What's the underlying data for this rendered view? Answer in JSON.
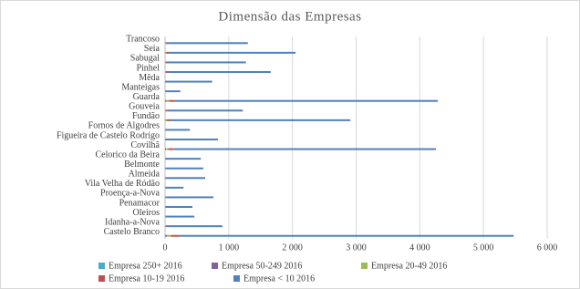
{
  "chart_data": {
    "type": "hbar_stacked",
    "title": "Dimensão das Empresas",
    "categories": [
      "Castelo Branco",
      "Idanha-a-Nova",
      "Oleiros",
      "Penamacor",
      "Proença-a-Nova",
      "Vila Velha de Ródão",
      "Almeida",
      "Belmonte",
      "Celorico da Beira",
      "Covilhã",
      "Figueira de Castelo Rodrigo",
      "Fornos de Algodres",
      "Fundão",
      "Gouveia",
      "Guarda",
      "Manteigas",
      "Mêda",
      "Pinhel",
      "Sabugal",
      "Seia",
      "Trancoso"
    ],
    "series": [
      {
        "name": "Empresa 250+ 2016",
        "color": "#4bacc6",
        "values": [
          3,
          0,
          0,
          0,
          0,
          0,
          0,
          0,
          0,
          2,
          0,
          0,
          1,
          0,
          2,
          0,
          0,
          0,
          0,
          1,
          0
        ]
      },
      {
        "name": "Empresa 50-249 2016",
        "color": "#8064a2",
        "values": [
          30,
          2,
          1,
          1,
          2,
          1,
          2,
          2,
          1,
          15,
          1,
          1,
          8,
          3,
          20,
          1,
          1,
          2,
          2,
          6,
          2
        ]
      },
      {
        "name": "Empresa 20-49 2016",
        "color": "#9bbb59",
        "values": [
          60,
          6,
          3,
          3,
          4,
          2,
          5,
          4,
          4,
          35,
          4,
          2,
          20,
          8,
          40,
          2,
          3,
          8,
          6,
          15,
          6
        ]
      },
      {
        "name": "Empresa 10-19 2016",
        "color": "#c0504d",
        "values": [
          130,
          15,
          8,
          8,
          12,
          5,
          12,
          10,
          10,
          80,
          10,
          6,
          50,
          20,
          90,
          4,
          10,
          25,
          20,
          35,
          18
        ]
      },
      {
        "name": "Empresa < 10 2016",
        "color": "#4f81bd",
        "values": [
          5250,
          877,
          448,
          418,
          742,
          282,
          611,
          584,
          545,
          4120,
          815,
          381,
          2830,
          1190,
          4130,
          233,
          726,
          1625,
          1242,
          1993,
          1274
        ]
      }
    ],
    "xlim": [
      0,
      6000
    ],
    "xticks": [
      0,
      {
        "value": 1000,
        "label": "1 000"
      },
      {
        "value": 2000,
        "label": "2 000"
      },
      {
        "value": 3000,
        "label": "3 000"
      },
      {
        "value": 4000,
        "label": "4 000"
      },
      {
        "value": 5000,
        "label": "5 000"
      },
      {
        "value": 6000,
        "label": "6 000"
      }
    ],
    "grid": true
  }
}
